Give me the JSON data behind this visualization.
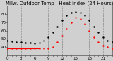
{
  "title": "Milw. Outdoor Temp   Heat Index (24 Hours)",
  "bg_color": "#d0d0d0",
  "plot_bg": "#d0d0d0",
  "temp_color": "#000000",
  "heat_color": "#ff0000",
  "grid_color": "#888888",
  "xlim": [
    0,
    23
  ],
  "ylim": [
    30,
    90
  ],
  "yticks": [
    40,
    50,
    60,
    70,
    80
  ],
  "hours": [
    0,
    1,
    2,
    3,
    4,
    5,
    6,
    7,
    8,
    9,
    10,
    11,
    12,
    13,
    14,
    15,
    16,
    17,
    18,
    19,
    20,
    21,
    22,
    23
  ],
  "x_labels": [
    "0",
    "",
    "",
    "3",
    "",
    "",
    "6",
    "",
    "",
    "9",
    "",
    "",
    "12",
    "",
    "",
    "15",
    "",
    "",
    "18",
    "",
    "",
    "21",
    "",
    ""
  ],
  "temp_values": [
    48,
    47,
    46,
    46,
    45,
    45,
    44,
    45,
    48,
    52,
    58,
    65,
    72,
    78,
    82,
    83,
    82,
    78,
    72,
    65,
    58,
    52,
    48,
    46
  ],
  "heat_values": [
    38,
    38,
    38,
    38,
    38,
    38,
    38,
    38,
    38,
    38,
    40,
    46,
    54,
    62,
    70,
    76,
    74,
    68,
    60,
    52,
    46,
    42,
    40,
    38
  ],
  "vgrid_positions": [
    3,
    6,
    9,
    12,
    15,
    18,
    21
  ],
  "title_fontsize": 5,
  "tick_fontsize": 4
}
